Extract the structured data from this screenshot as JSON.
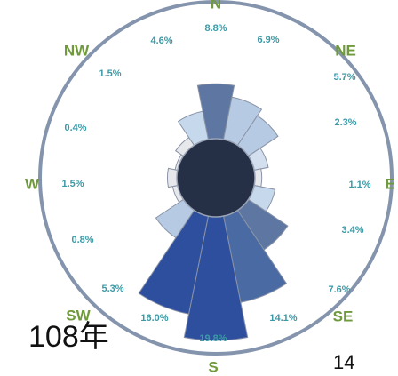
{
  "chart_data": {
    "type": "wind-rose",
    "directions": [
      "N",
      "NE",
      "E",
      "SE",
      "S",
      "SW",
      "W",
      "NW"
    ],
    "sectors": [
      {
        "dir": "N",
        "label": "N",
        "value": 8.8,
        "value_label": "8.8%"
      },
      {
        "dir": "NNE",
        "label": "",
        "value": 6.9,
        "value_label": "6.9%"
      },
      {
        "dir": "NE",
        "label": "NE",
        "value": 5.7,
        "value_label": "5.7%"
      },
      {
        "dir": "ENE",
        "label": "",
        "value": 2.3,
        "value_label": "2.3%"
      },
      {
        "dir": "E",
        "label": "E",
        "value": 1.1,
        "value_label": "1.1%"
      },
      {
        "dir": "ESE",
        "label": "",
        "value": 3.4,
        "value_label": "3.4%"
      },
      {
        "dir": "SE",
        "label": "SE",
        "value": 7.6,
        "value_label": "7.6%"
      },
      {
        "dir": "SSE",
        "label": "",
        "value": 14.1,
        "value_label": "14.1%"
      },
      {
        "dir": "S",
        "label": "S",
        "value": 19.8,
        "value_label": "19.8%"
      },
      {
        "dir": "SSW",
        "label": "",
        "value": 16.0,
        "value_label": "16.0%"
      },
      {
        "dir": "SW",
        "label": "SW",
        "value": 5.3,
        "value_label": "5.3%"
      },
      {
        "dir": "WSW",
        "label": "",
        "value": 0.8,
        "value_label": "0.8%"
      },
      {
        "dir": "W",
        "label": "W",
        "value": 1.5,
        "value_label": "1.5%"
      },
      {
        "dir": "WNW",
        "label": "",
        "value": 0.4,
        "value_label": "0.4%"
      },
      {
        "dir": "NW",
        "label": "NW",
        "value": 1.5,
        "value_label": "1.5%"
      },
      {
        "dir": "NNW",
        "label": "",
        "value": 4.6,
        "value_label": "4.6%"
      }
    ],
    "colors": {
      "ring": "#8494ad",
      "center": "#253047",
      "direction_label": "#6f9a3c",
      "value_label": "#3c9aa6"
    }
  },
  "year_label": "108年",
  "page_number": "14"
}
